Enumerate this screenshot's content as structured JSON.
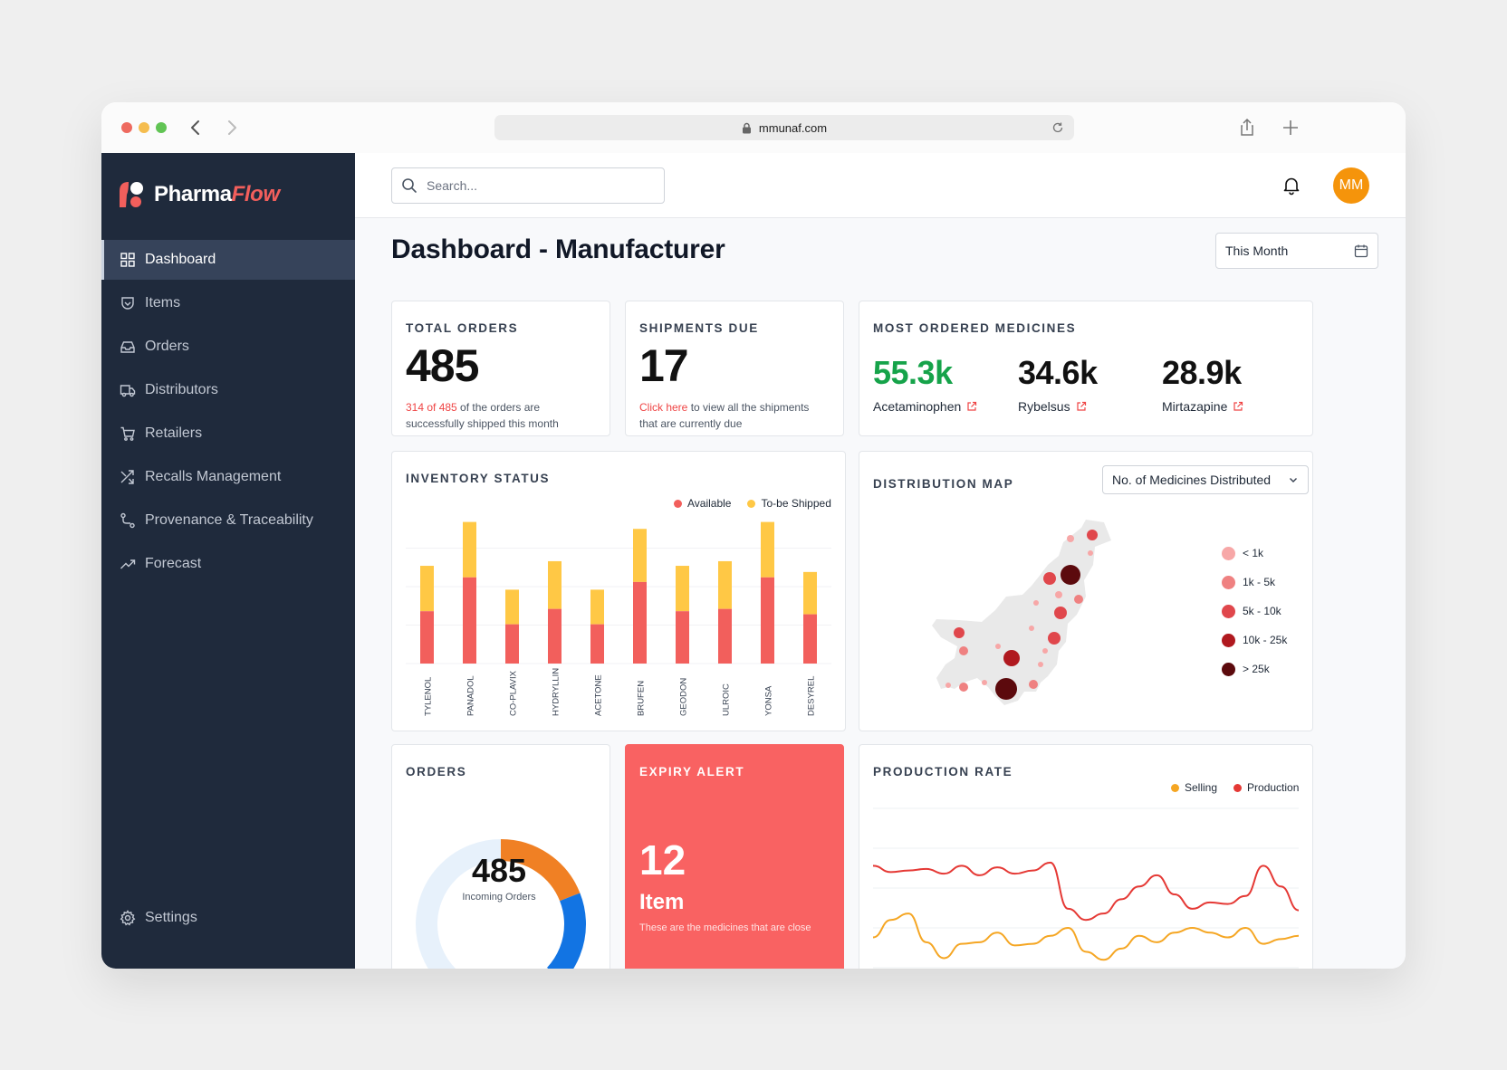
{
  "browser": {
    "url": "mmunaf.com"
  },
  "brand": {
    "name_main": "Pharma",
    "name_accent": "Flow"
  },
  "sidebar": {
    "items": [
      {
        "label": "Dashboard",
        "icon": "grid-icon",
        "active": true
      },
      {
        "label": "Items",
        "icon": "pill-box-icon"
      },
      {
        "label": "Orders",
        "icon": "inbox-icon"
      },
      {
        "label": "Distributors",
        "icon": "truck-icon"
      },
      {
        "label": "Retailers",
        "icon": "cart-icon"
      },
      {
        "label": "Recalls Management",
        "icon": "shuffle-icon"
      },
      {
        "label": "Provenance & Traceability",
        "icon": "route-icon"
      },
      {
        "label": "Forecast",
        "icon": "trend-up-icon"
      }
    ],
    "settings_label": "Settings"
  },
  "topbar": {
    "search_placeholder": "Search...",
    "avatar_initials": "MM"
  },
  "page": {
    "title": "Dashboard - Manufacturer",
    "date_filter": "This Month"
  },
  "total_orders": {
    "label": "TOTAL ORDERS",
    "value": "485",
    "note_highlight": "314 of 485",
    "note_text_1": " of the orders are",
    "note_text_2": "successfully shipped this month"
  },
  "shipments_due": {
    "label": "SHIPMENTS DUE",
    "value": "17",
    "note_highlight": "Click here",
    "note_text_1": " to view all the shipments",
    "note_text_2": "that are currently due"
  },
  "most_ordered": {
    "label": "MOST ORDERED MEDICINES",
    "items": [
      {
        "value": "55.3k",
        "name": "Acetaminophen"
      },
      {
        "value": "34.6k",
        "name": "Rybelsus"
      },
      {
        "value": "28.9k",
        "name": "Mirtazapine"
      }
    ]
  },
  "inventory": {
    "label": "INVENTORY STATUS",
    "legend": [
      "Available",
      "To-be Shipped"
    ]
  },
  "distribution_map": {
    "label": "DISTRIBUTION MAP",
    "select_value": "No. of Medicines Distributed",
    "legend": [
      "< 1k",
      "1k - 5k",
      "5k - 10k",
      "10k - 25k",
      "> 25k"
    ],
    "colors": [
      "#f7a7a7",
      "#ef8181",
      "#e0474c",
      "#b0191f",
      "#5c0a0d"
    ]
  },
  "orders_donut": {
    "label": "ORDERS",
    "value": "485",
    "caption": "Incoming Orders",
    "segments": [
      {
        "fraction": 0.19,
        "color": "#f08024"
      },
      {
        "fraction": 0.18,
        "color": "#1274e3"
      },
      {
        "fraction": 0.63,
        "color": "#e7f1fb"
      }
    ]
  },
  "expiry_alert": {
    "label": "EXPIRY ALERT",
    "value": "12",
    "unit": "Item",
    "description": "These are the medicines that are close"
  },
  "production_rate": {
    "label": "PRODUCTION RATE",
    "legend": [
      "Selling",
      "Production"
    ]
  },
  "chart_data": [
    {
      "type": "bar",
      "title": "INVENTORY STATUS",
      "stacked": true,
      "categories": [
        "TYLENOL",
        "PANADOL",
        "CO-PLAVIX",
        "HYDRYLLIN",
        "ACETONE",
        "BRUFEN",
        "GEODON",
        "ULROIC",
        "YONSA",
        "DESYREL"
      ],
      "series": [
        {
          "name": "Available",
          "color": "#f25f5c",
          "values": [
            68,
            112,
            51,
            71,
            51,
            106,
            68,
            71,
            112,
            64
          ]
        },
        {
          "name": "To-be Shipped",
          "color": "#ffc845",
          "values": [
            59,
            72,
            45,
            62,
            45,
            69,
            59,
            62,
            72,
            55
          ]
        }
      ],
      "ylim": [
        0,
        200
      ],
      "grid": true,
      "legend_position": "top-right"
    },
    {
      "type": "line",
      "title": "PRODUCTION RATE",
      "x": [
        0,
        1,
        2,
        3,
        4,
        5,
        6,
        7,
        8,
        9,
        10,
        11,
        12,
        13,
        14,
        15,
        16,
        17,
        18,
        19,
        20,
        21,
        22,
        23,
        24
      ],
      "series": [
        {
          "name": "Production",
          "color": "#e53935",
          "values": [
            64,
            60,
            61,
            62,
            59,
            64,
            58,
            63,
            59,
            61,
            66,
            37,
            30,
            34,
            43,
            51,
            58,
            46,
            37,
            41,
            40,
            45,
            64,
            51,
            36
          ]
        },
        {
          "name": "Selling",
          "color": "#f5a623",
          "values": [
            19,
            30,
            34,
            16,
            6,
            15,
            16,
            22,
            14,
            15,
            20,
            25,
            10,
            5,
            12,
            20,
            16,
            22,
            25,
            22,
            19,
            25,
            15,
            18,
            20
          ]
        }
      ],
      "ylim": [
        0,
        100
      ],
      "grid": true,
      "legend_position": "top-right"
    }
  ]
}
